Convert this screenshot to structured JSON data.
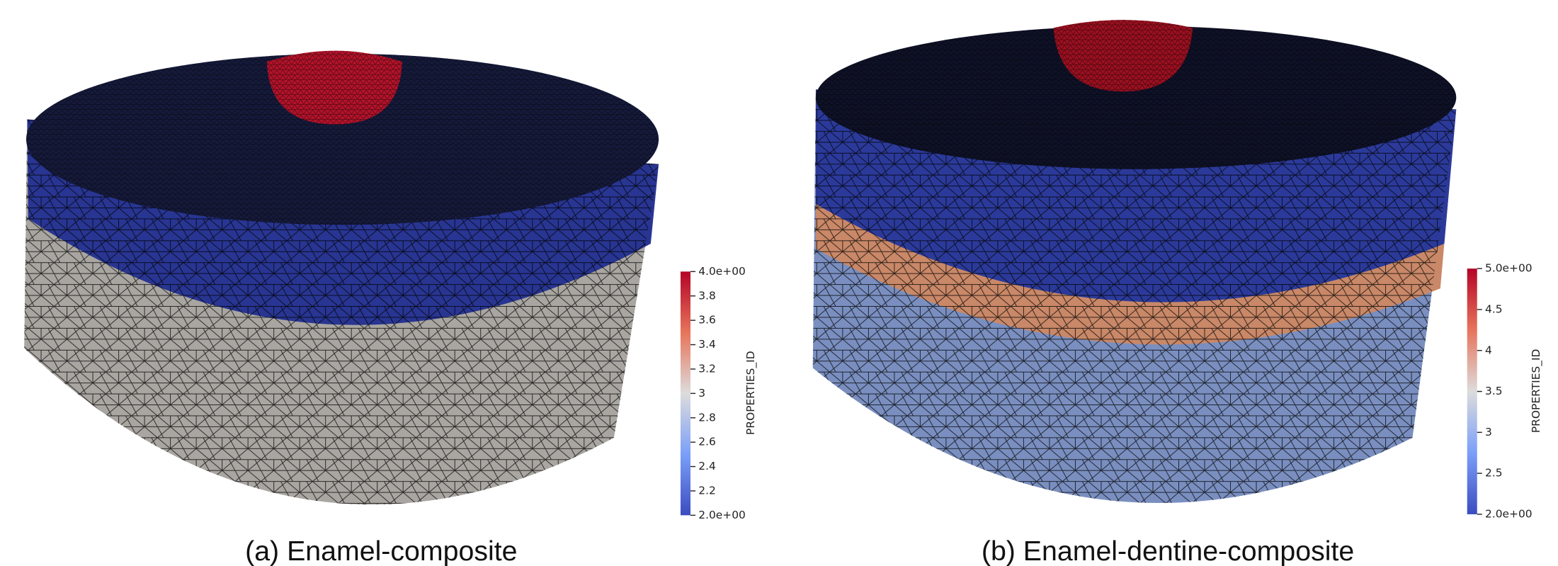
{
  "panels": [
    {
      "caption": "(a) Enamel-composite",
      "colorbar": {
        "title": "PROPERTIES_ID",
        "ticks": [
          "4.0e+00",
          "3.8",
          "3.6",
          "3.4",
          "3.2",
          "3",
          "2.8",
          "2.6",
          "2.4",
          "2.2",
          "2.0e+00"
        ]
      }
    },
    {
      "caption": "(b) Enamel-dentine-composite",
      "colorbar": {
        "title": "PROPERTIES_ID",
        "ticks": [
          "5.0e+00",
          "4.5",
          "4",
          "3.5",
          "3",
          "2.5",
          "2.0e+00"
        ]
      }
    }
  ]
}
